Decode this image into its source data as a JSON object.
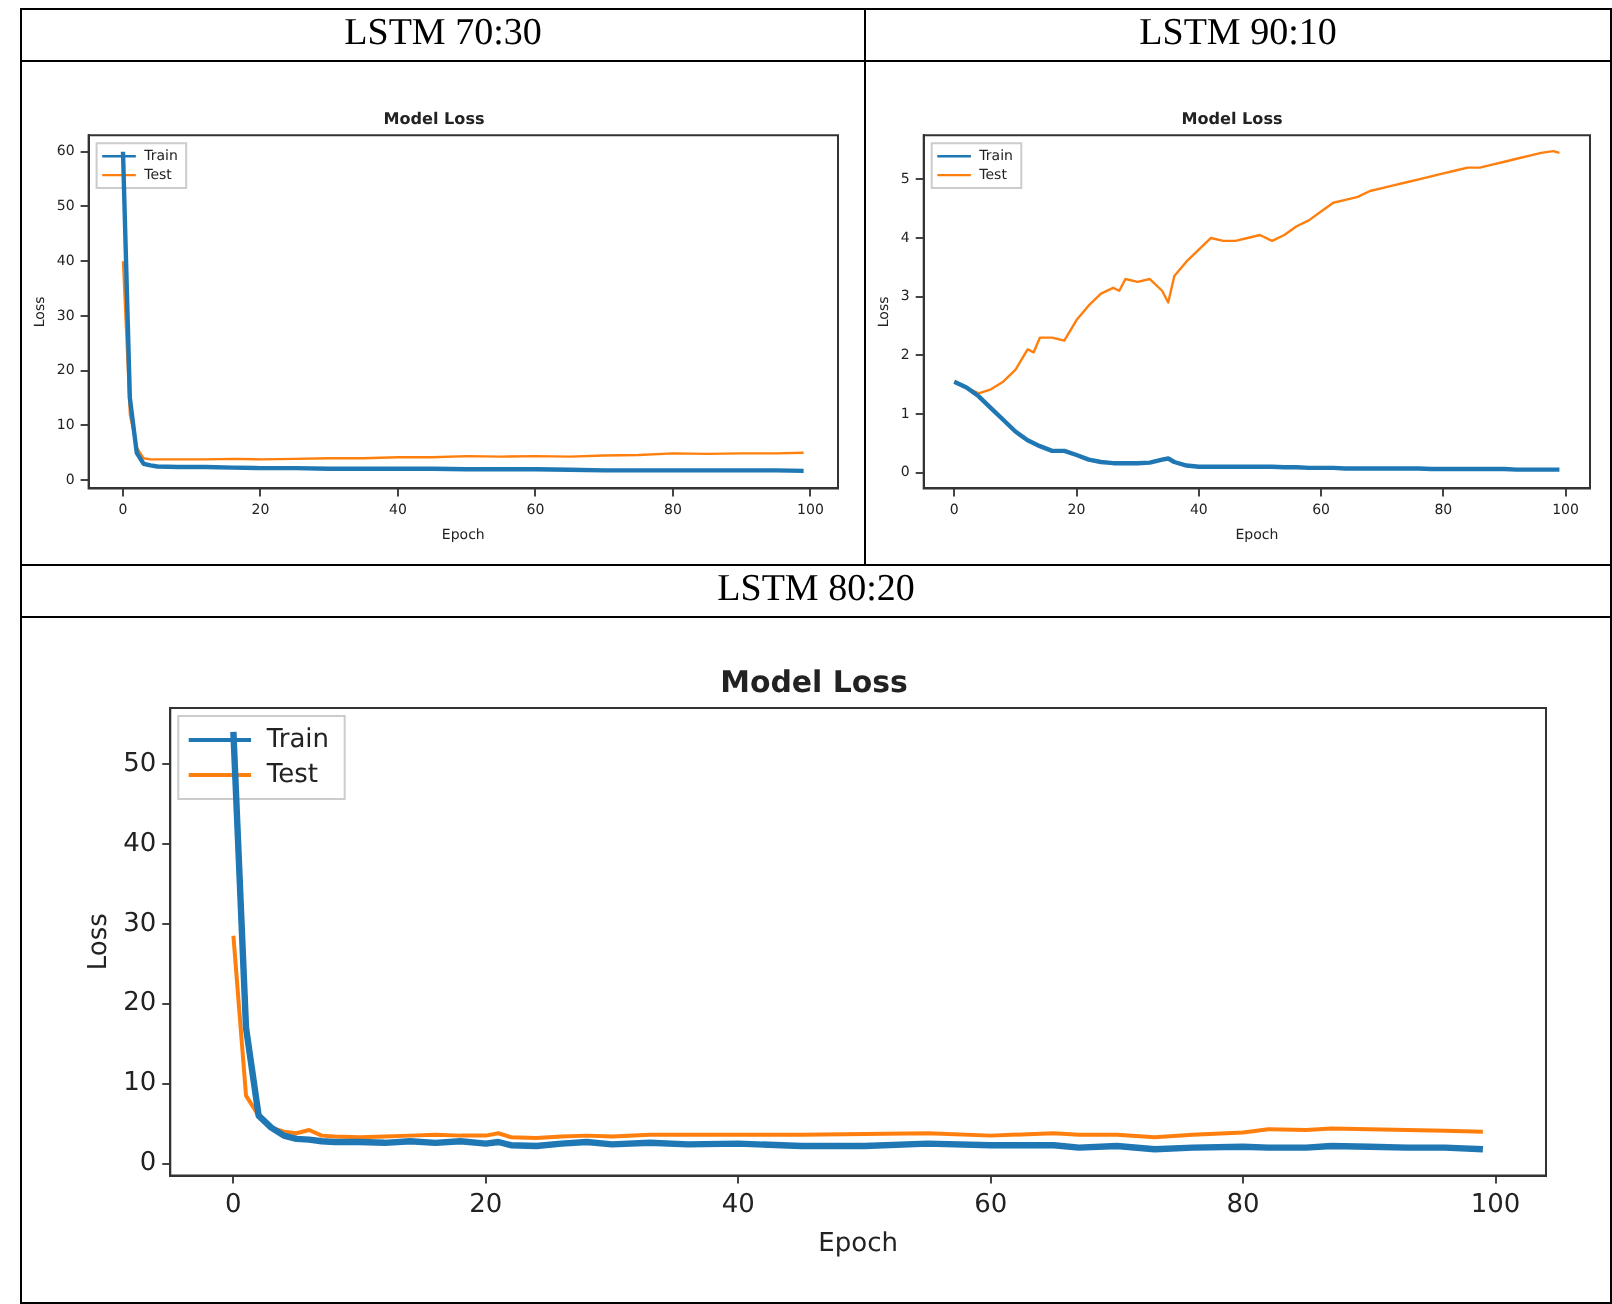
{
  "chart_data": [
    {
      "type": "line",
      "title": "Model Loss",
      "subtitle": "LSTM 70:30",
      "xlabel": "Epoch",
      "ylabel": "Loss",
      "legend": "top left",
      "grid": false,
      "xlim": [
        -5,
        104
      ],
      "xticks": [
        0,
        20,
        40,
        60,
        80,
        100
      ],
      "ylim": [
        -1.5,
        63
      ],
      "yticks": [
        0,
        10,
        20,
        30,
        40,
        50,
        60
      ],
      "x": [
        0,
        1,
        2,
        3,
        4,
        5,
        8,
        12,
        16,
        20,
        25,
        30,
        35,
        40,
        45,
        50,
        55,
        60,
        65,
        70,
        75,
        80,
        85,
        90,
        95,
        99
      ],
      "series": [
        {
          "name": "Train",
          "color": "#1f77b4",
          "values": [
            60,
            15,
            5,
            3,
            2.7,
            2.5,
            2.4,
            2.4,
            2.3,
            2.2,
            2.2,
            2.1,
            2.1,
            2.1,
            2.1,
            2.0,
            2.0,
            2.0,
            1.9,
            1.8,
            1.8,
            1.8,
            1.8,
            1.8,
            1.8,
            1.7
          ]
        },
        {
          "name": "Test",
          "color": "#ff7f0e",
          "values": [
            40,
            12,
            6,
            4,
            3.8,
            3.8,
            3.8,
            3.8,
            3.9,
            3.8,
            3.9,
            4.0,
            4.0,
            4.2,
            4.2,
            4.4,
            4.3,
            4.4,
            4.3,
            4.5,
            4.6,
            4.9,
            4.8,
            4.9,
            4.9,
            5.0
          ]
        }
      ]
    },
    {
      "type": "line",
      "title": "Model Loss",
      "subtitle": "LSTM 90:10",
      "xlabel": "Epoch",
      "ylabel": "Loss",
      "legend": "top left",
      "grid": false,
      "xlim": [
        -5,
        104
      ],
      "xticks": [
        0,
        20,
        40,
        60,
        80,
        100
      ],
      "ylim": [
        -0.27,
        5.75
      ],
      "yticks": [
        0,
        1,
        2,
        3,
        4,
        5
      ],
      "x": [
        0,
        2,
        4,
        6,
        8,
        10,
        12,
        13,
        14,
        16,
        18,
        20,
        22,
        24,
        26,
        27,
        28,
        30,
        32,
        34,
        35,
        36,
        38,
        40,
        42,
        44,
        46,
        48,
        50,
        52,
        54,
        56,
        58,
        60,
        62,
        64,
        66,
        68,
        70,
        72,
        74,
        76,
        78,
        80,
        82,
        84,
        86,
        88,
        90,
        92,
        94,
        96,
        98,
        99
      ],
      "series": [
        {
          "name": "Train",
          "color": "#1f77b4",
          "values": [
            1.55,
            1.45,
            1.3,
            1.1,
            0.9,
            0.7,
            0.55,
            0.5,
            0.45,
            0.37,
            0.37,
            0.3,
            0.22,
            0.18,
            0.16,
            0.16,
            0.16,
            0.16,
            0.17,
            0.22,
            0.24,
            0.18,
            0.12,
            0.1,
            0.1,
            0.1,
            0.1,
            0.1,
            0.1,
            0.1,
            0.09,
            0.09,
            0.08,
            0.08,
            0.08,
            0.07,
            0.07,
            0.07,
            0.07,
            0.07,
            0.07,
            0.07,
            0.06,
            0.06,
            0.06,
            0.06,
            0.06,
            0.06,
            0.06,
            0.05,
            0.05,
            0.05,
            0.05,
            0.05
          ]
        },
        {
          "name": "Test",
          "color": "#ff7f0e",
          "values": [
            1.55,
            1.45,
            1.35,
            1.42,
            1.55,
            1.75,
            2.1,
            2.05,
            2.3,
            2.3,
            2.25,
            2.6,
            2.85,
            3.05,
            3.15,
            3.1,
            3.3,
            3.25,
            3.3,
            3.1,
            2.9,
            3.35,
            3.6,
            3.8,
            4.0,
            3.95,
            3.95,
            4.0,
            4.05,
            3.95,
            4.05,
            4.2,
            4.3,
            4.45,
            4.6,
            4.65,
            4.7,
            4.8,
            4.85,
            4.9,
            4.95,
            5.0,
            5.05,
            5.1,
            5.15,
            5.2,
            5.2,
            5.25,
            5.3,
            5.35,
            5.4,
            5.45,
            5.48,
            5.45
          ]
        }
      ]
    },
    {
      "type": "line",
      "title": "Model Loss",
      "subtitle": "LSTM 80:20",
      "xlabel": "Epoch",
      "ylabel": "Loss",
      "legend": "top left",
      "grid": false,
      "xlim": [
        -5,
        104
      ],
      "xticks": [
        0,
        20,
        40,
        60,
        80,
        100
      ],
      "ylim": [
        -1.5,
        57
      ],
      "yticks": [
        0,
        10,
        20,
        30,
        40,
        50
      ],
      "x": [
        0,
        1,
        2,
        3,
        4,
        5,
        6,
        7,
        8,
        10,
        12,
        14,
        16,
        18,
        20,
        21,
        22,
        24,
        26,
        28,
        30,
        33,
        36,
        40,
        45,
        50,
        55,
        60,
        65,
        67,
        70,
        73,
        76,
        80,
        82,
        85,
        87,
        90,
        93,
        96,
        99
      ],
      "series": [
        {
          "name": "Train",
          "color": "#1f77b4",
          "values": [
            54,
            17,
            6,
            4.5,
            3.5,
            3.1,
            3.0,
            2.8,
            2.7,
            2.7,
            2.6,
            2.8,
            2.6,
            2.8,
            2.5,
            2.7,
            2.3,
            2.2,
            2.5,
            2.7,
            2.4,
            2.6,
            2.4,
            2.5,
            2.2,
            2.2,
            2.5,
            2.3,
            2.3,
            2.0,
            2.2,
            1.8,
            2.0,
            2.1,
            2.0,
            2.0,
            2.2,
            2.1,
            2.0,
            2.0,
            1.8
          ]
        },
        {
          "name": "Test",
          "color": "#ff7f0e",
          "values": [
            28.5,
            8.5,
            6,
            4.5,
            4,
            3.8,
            4.2,
            3.5,
            3.4,
            3.3,
            3.4,
            3.5,
            3.6,
            3.5,
            3.5,
            3.8,
            3.3,
            3.2,
            3.4,
            3.5,
            3.4,
            3.6,
            3.6,
            3.6,
            3.6,
            3.7,
            3.8,
            3.5,
            3.8,
            3.6,
            3.6,
            3.3,
            3.6,
            3.9,
            4.3,
            4.2,
            4.4,
            4.3,
            4.2,
            4.1,
            4.0
          ]
        }
      ]
    }
  ]
}
